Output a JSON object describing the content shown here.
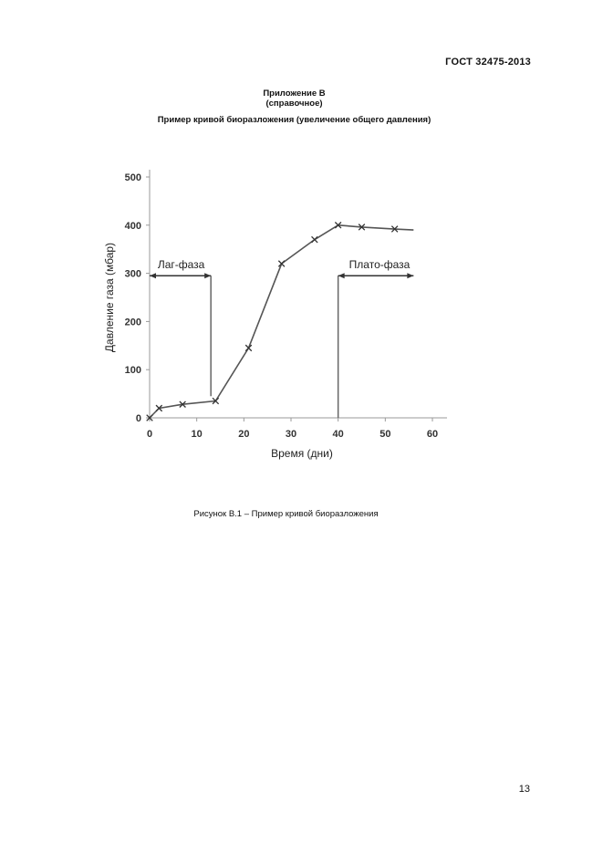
{
  "header": {
    "standard": "ГОСТ 32475-2013"
  },
  "appendix": {
    "title": "Приложение В",
    "note": "(справочное)",
    "heading": "Пример кривой биоразложения (увеличение общего давления)"
  },
  "caption": "Рисунок В.1 – Пример кривой биоразложения",
  "page_number": "13",
  "chart_data": {
    "type": "line",
    "xlabel": "Время (дни)",
    "ylabel": "Давление газа (мбар)",
    "xlim": [
      0,
      60
    ],
    "ylim": [
      0,
      500
    ],
    "x_ticks": [
      "0",
      "10",
      "20",
      "30",
      "40",
      "50",
      "60"
    ],
    "y_ticks": [
      "0",
      "100",
      "200",
      "300",
      "400",
      "500"
    ],
    "series": [
      {
        "x": [
          0,
          2,
          7,
          14,
          21,
          28,
          35,
          40,
          45,
          52,
          56
        ],
        "y": [
          0,
          20,
          28,
          35,
          145,
          320,
          370,
          400,
          396,
          392,
          390
        ],
        "markers": [
          true,
          true,
          true,
          true,
          true,
          true,
          true,
          true,
          true,
          true,
          false
        ],
        "color": "#555555"
      }
    ],
    "annotations": [
      {
        "text": "Лаг-фаза",
        "x_start": 0,
        "x_end": 13,
        "y": 295,
        "drop_to": 45,
        "direction": "left"
      },
      {
        "text": "Плато-фаза",
        "x_start": 40,
        "x_end": 56,
        "y": 295,
        "drop_to": 0,
        "direction": "right"
      }
    ],
    "grid": false
  }
}
